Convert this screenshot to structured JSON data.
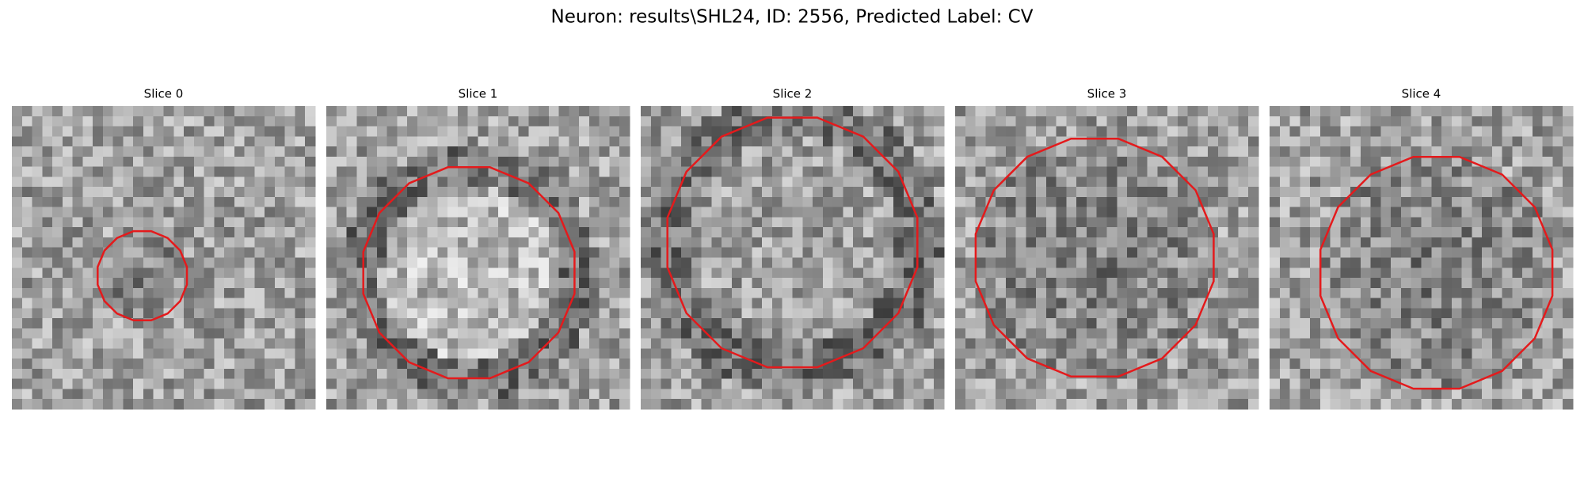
{
  "title": "Neuron: results\\SHL24, ID: 2556, Predicted Label: CV",
  "panels": [
    {
      "title": "Slice 0"
    },
    {
      "title": "Slice 1"
    },
    {
      "title": "Slice 2"
    },
    {
      "title": "Slice 3"
    },
    {
      "title": "Slice 4"
    }
  ]
}
